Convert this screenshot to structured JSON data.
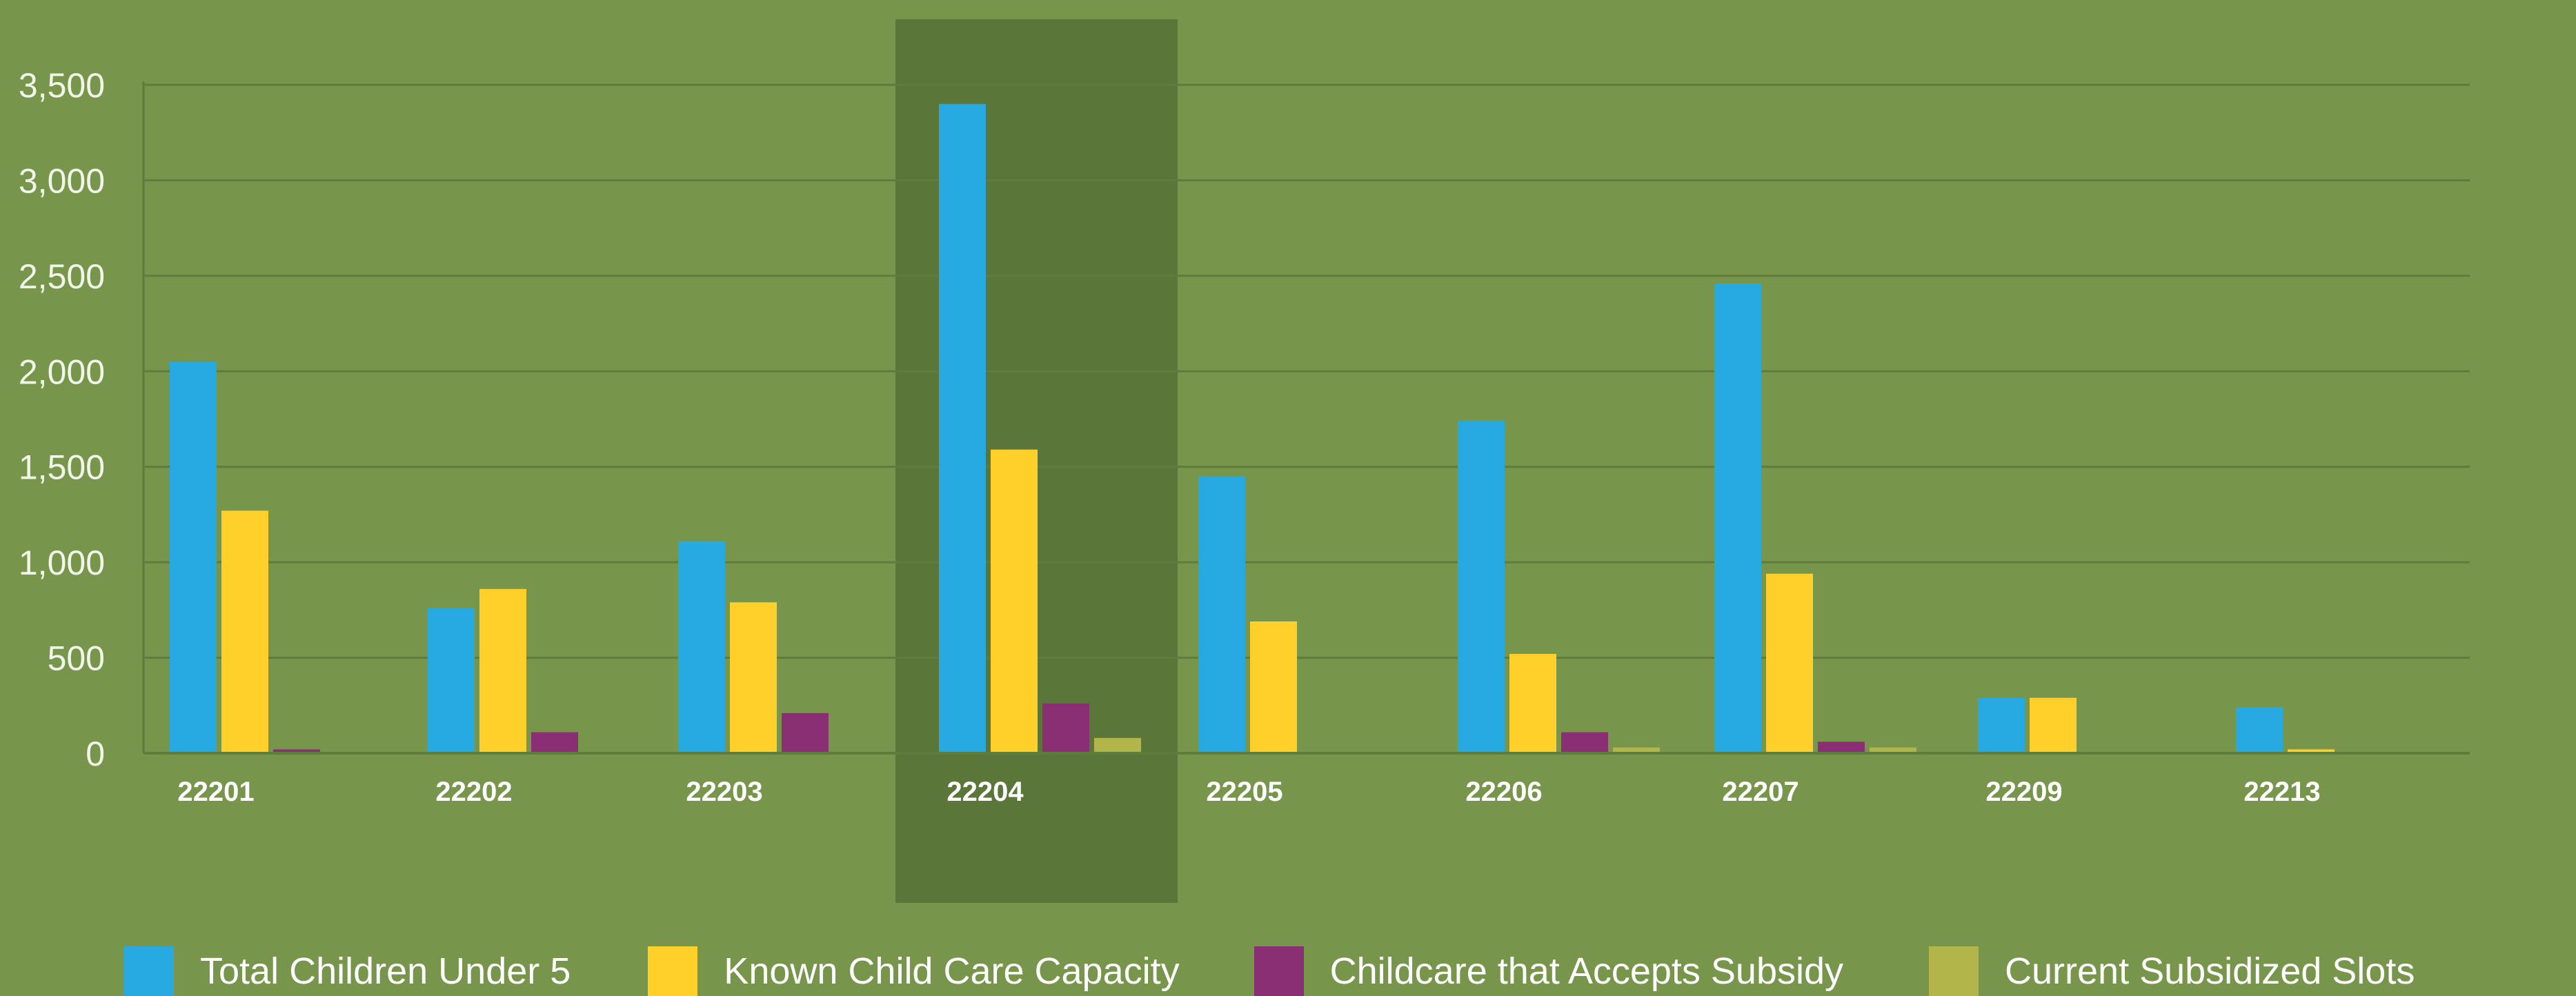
{
  "colors": {
    "background": "#77954b",
    "highlight": "#5a7739",
    "gridline": "#5e7d3c",
    "series": [
      "#27aae1",
      "#ffd02a",
      "#8a2f73",
      "#b2b64a"
    ]
  },
  "chart_data": {
    "type": "bar",
    "grid": true,
    "legend_position": "bottom",
    "ylim": [
      0,
      3500
    ],
    "yticks": [
      "3,500",
      "3,000",
      "2,500",
      "2,000",
      "1,500",
      "1,000",
      "500",
      "0"
    ],
    "ytick_values": [
      3500,
      3000,
      2500,
      2000,
      1500,
      1000,
      500,
      0
    ],
    "categories": [
      "22201",
      "22202",
      "22203",
      "22204",
      "22205",
      "22206",
      "22207",
      "22209",
      "22213"
    ],
    "highlighted_category": "22204",
    "series": [
      {
        "name": "Total Children Under 5",
        "values": [
          2050,
          760,
          1110,
          3400,
          1450,
          1740,
          2460,
          290,
          240
        ]
      },
      {
        "name": "Known Child Care Capacity",
        "values": [
          1270,
          860,
          790,
          1590,
          690,
          520,
          940,
          290,
          20
        ]
      },
      {
        "name": "Childcare that Accepts Subsidy",
        "values": [
          20,
          110,
          210,
          260,
          0,
          110,
          60,
          0,
          0
        ]
      },
      {
        "name": "Current Subsidized Slots",
        "values": [
          5,
          0,
          5,
          80,
          0,
          30,
          30,
          0,
          0
        ]
      }
    ]
  }
}
